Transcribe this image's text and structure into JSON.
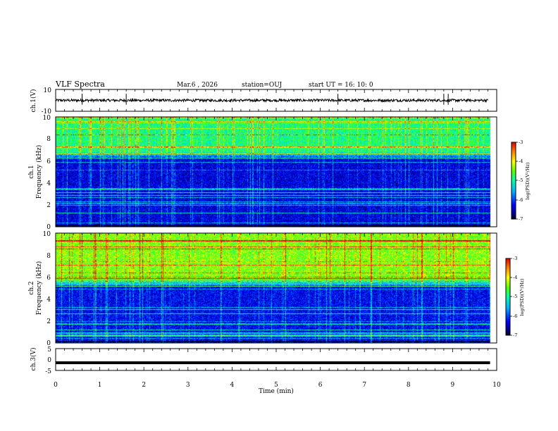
{
  "header": {
    "title": "VLF Spectra",
    "date": "Mar.6  , 2026",
    "station": "station=OUJ",
    "start_ut": "start  UT  =   16: 10: 0"
  },
  "chart_data": [
    {
      "type": "line",
      "name": "ch1-waveform",
      "ylabel": "ch.1(V)",
      "ylim": [
        -10,
        10
      ],
      "yticks": [
        "10",
        "-10"
      ],
      "xlim": [
        0,
        10
      ],
      "baseline": 0,
      "noise_amplitude": 1.2,
      "spikes_min": [
        0.6,
        1.6,
        6.4,
        8.8,
        8.9
      ]
    },
    {
      "type": "heatmap",
      "name": "ch1-spectrogram",
      "ylabel_line1": "ch.1",
      "ylabel_line2": "Frequency (kHz)",
      "ylim": [
        0,
        10
      ],
      "yticks": [
        "0",
        "2",
        "4",
        "6",
        "8",
        "10"
      ],
      "xlim": [
        0,
        10
      ],
      "data_end_min": 9.85,
      "colorbar": {
        "label": "log(PSD)(V²/Hz)",
        "ticks": [
          "-3",
          "-4",
          "-5",
          "-6",
          "-7"
        ],
        "range": [
          -7,
          -3
        ]
      },
      "upper_band_kHz": [
        6.5,
        10
      ],
      "upper_band_level": -4.9,
      "lower_band_level": -6.4
    },
    {
      "type": "heatmap",
      "name": "ch2-spectrogram",
      "ylabel_line1": "ch.2",
      "ylabel_line2": "Frequency (kHz)",
      "ylim": [
        0,
        10
      ],
      "yticks": [
        "0",
        "2",
        "4",
        "6",
        "8",
        "10"
      ],
      "xlim": [
        0,
        10
      ],
      "data_end_min": 9.85,
      "colorbar": {
        "label": "log(PSD)(V²/Hz)",
        "ticks": [
          "-3",
          "-4",
          "-5",
          "-6",
          "-7"
        ],
        "range": [
          -7,
          -3
        ]
      },
      "upper_band_kHz": [
        5.5,
        10
      ],
      "upper_band_level": -4.4,
      "lower_band_level": -6.3
    },
    {
      "type": "line",
      "name": "ch3-waveform",
      "ylabel": "ch.3(V)",
      "ylim": [
        -5,
        5
      ],
      "yticks": [
        "5",
        "0",
        "-5"
      ],
      "xlim": [
        0,
        10
      ],
      "constant_value": -1.5
    }
  ],
  "x_axis": {
    "label": "Time  (min)",
    "ticks": [
      "0",
      "1",
      "2",
      "3",
      "4",
      "5",
      "6",
      "7",
      "8",
      "9",
      "10"
    ]
  }
}
